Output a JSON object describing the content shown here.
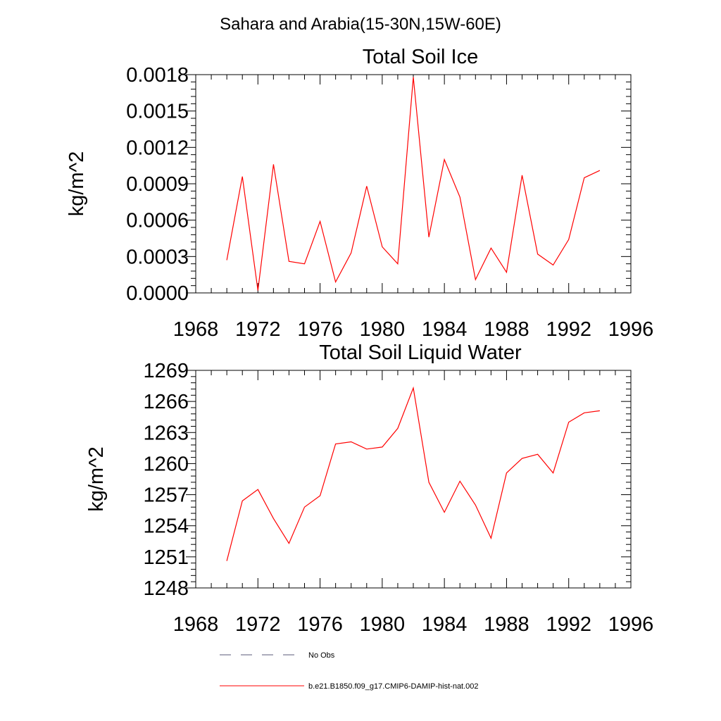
{
  "figure": {
    "title": "Sahara and Arabia(15-30N,15W-60E)"
  },
  "legend": {
    "entries": [
      {
        "label": "No Obs",
        "style": "dashed",
        "color": "#5a5a78"
      },
      {
        "label": "b.e21.B1850.f09_g17.CMIP6-DAMIP-hist-nat.002",
        "style": "solid",
        "color": "#ff0000"
      }
    ]
  },
  "chart_data": [
    {
      "type": "line",
      "title": "Total Soil Ice",
      "xlabel": "",
      "ylabel": "kg/m^2",
      "xlim": [
        1968,
        1996
      ],
      "ylim": [
        0,
        0.0018
      ],
      "xticks": [
        "1968",
        "1972",
        "1976",
        "1980",
        "1984",
        "1988",
        "1992",
        "1996"
      ],
      "yticks": [
        "0.0000",
        "0.0003",
        "0.0006",
        "0.0009",
        "0.0012",
        "0.0015",
        "0.0018"
      ],
      "grid": false,
      "x": [
        1970,
        1971,
        1972,
        1973,
        1974,
        1975,
        1976,
        1977,
        1978,
        1979,
        1980,
        1981,
        1982,
        1983,
        1984,
        1985,
        1986,
        1987,
        1988,
        1989,
        1990,
        1991,
        1992,
        1993,
        1994
      ],
      "series": [
        {
          "color": "#ff0000",
          "values": [
            0.00027,
            0.00096,
            2e-05,
            0.00106,
            0.00026,
            0.00024,
            0.00059,
            9e-05,
            0.00033,
            0.00088,
            0.00038,
            0.00024,
            0.00178,
            0.00046,
            0.0011,
            0.00079,
            0.00011,
            0.00037,
            0.00017,
            0.00097,
            0.00032,
            0.00023,
            0.00044,
            0.00095,
            0.00101
          ]
        }
      ]
    },
    {
      "type": "line",
      "title": "Total Soil Liquid Water",
      "xlabel": "",
      "ylabel": "kg/m^2",
      "xlim": [
        1968,
        1996
      ],
      "ylim": [
        1248,
        1269
      ],
      "xticks": [
        "1968",
        "1972",
        "1976",
        "1980",
        "1984",
        "1988",
        "1992",
        "1996"
      ],
      "yticks": [
        "1248",
        "1251",
        "1254",
        "1257",
        "1260",
        "1263",
        "1266",
        "1269"
      ],
      "grid": false,
      "x": [
        1970,
        1971,
        1972,
        1973,
        1974,
        1975,
        1976,
        1977,
        1978,
        1979,
        1980,
        1981,
        1982,
        1983,
        1984,
        1985,
        1986,
        1987,
        1988,
        1989,
        1990,
        1991,
        1992,
        1993,
        1994
      ],
      "series": [
        {
          "color": "#ff0000",
          "values": [
            1250.6,
            1256.4,
            1257.5,
            1254.7,
            1252.3,
            1255.8,
            1256.9,
            1261.9,
            1262.1,
            1261.4,
            1261.6,
            1263.4,
            1267.3,
            1258.2,
            1255.3,
            1258.3,
            1256.0,
            1252.8,
            1259.1,
            1260.5,
            1260.9,
            1259.1,
            1264.0,
            1264.9,
            1265.1
          ]
        }
      ]
    }
  ]
}
